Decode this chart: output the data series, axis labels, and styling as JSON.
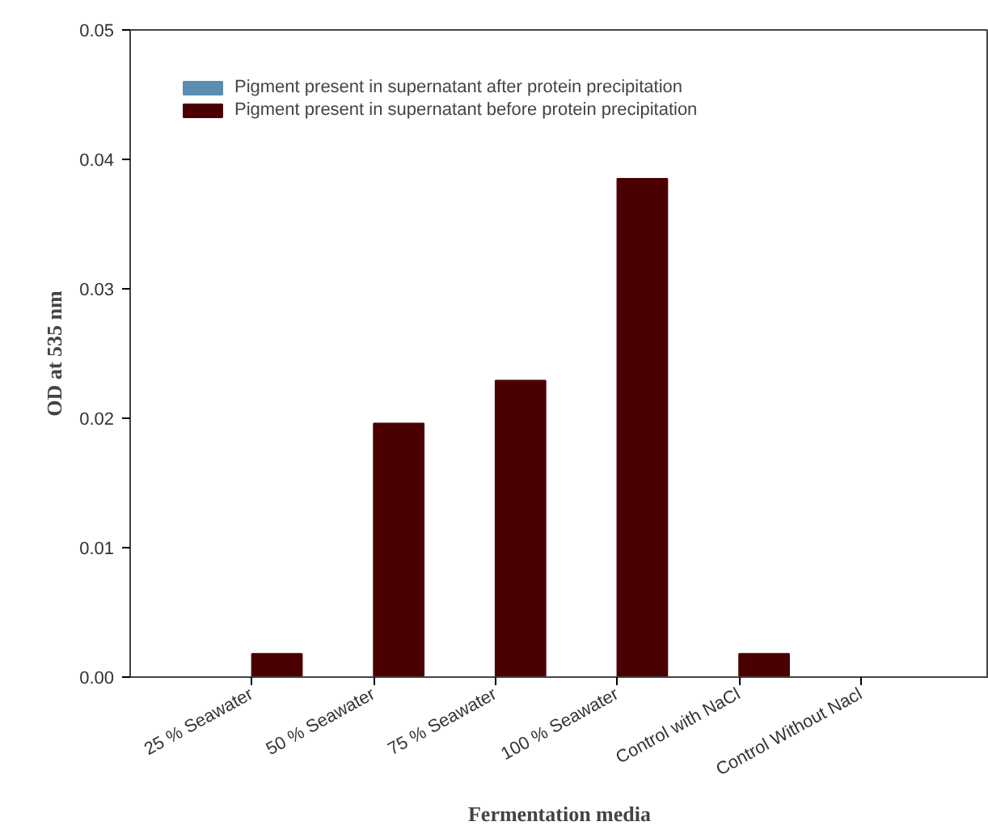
{
  "chart_data": {
    "type": "bar",
    "xlabel": "Fermentation media",
    "ylabel": "OD at 535 nm",
    "categories": [
      "25 % Seawater",
      "50 % Seawater",
      "75 % Seawater",
      "100 % Seawater",
      "Control with NaCl",
      "Control Without Nacl"
    ],
    "series": [
      {
        "name": "Pigment present in supernatant after protein precipitation",
        "color": "#5b8db0",
        "values": [
          0,
          0,
          0,
          0,
          0,
          0
        ]
      },
      {
        "name": "Pigment present in supernatant before protein precipitation",
        "color": "#4a0000",
        "values": [
          0.0018,
          0.0196,
          0.0229,
          0.0385,
          0.0018,
          0
        ]
      }
    ],
    "ylim": [
      0,
      0.05
    ],
    "yticks": [
      {
        "value": 0,
        "label": "0.00"
      },
      {
        "value": 0.01,
        "label": "0.01"
      },
      {
        "value": 0.02,
        "label": "0.02"
      },
      {
        "value": 0.03,
        "label": "0.03"
      },
      {
        "value": 0.04,
        "label": "0.04"
      },
      {
        "value": 0.05,
        "label": "0.05"
      }
    ],
    "legend": "top left",
    "grid": false
  }
}
